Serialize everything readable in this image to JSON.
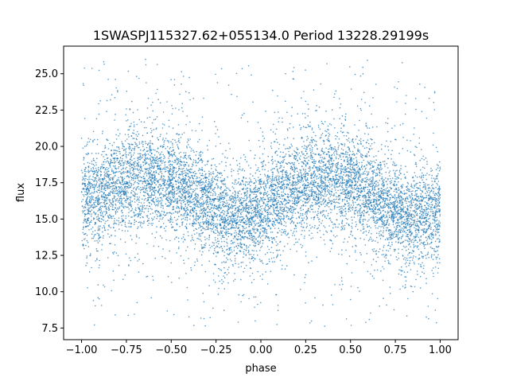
{
  "chart_data": {
    "type": "scatter",
    "title": "1SWASPJ115327.62+055134.0 Period 13228.29199s",
    "xlabel": "phase",
    "ylabel": "flux",
    "xlim": [
      -1.1,
      1.1
    ],
    "ylim": [
      6.7,
      26.9
    ],
    "x_ticks": [
      -1.0,
      -0.75,
      -0.5,
      -0.25,
      0.0,
      0.25,
      0.5,
      0.75,
      1.0
    ],
    "x_tick_labels": [
      "−1.00",
      "−0.75",
      "−0.50",
      "−0.25",
      "0.00",
      "0.25",
      "0.50",
      "0.75",
      "1.00"
    ],
    "y_ticks": [
      7.5,
      10.0,
      12.5,
      15.0,
      17.5,
      20.0,
      22.5,
      25.0
    ],
    "y_tick_labels": [
      "7.5",
      "10.0",
      "12.5",
      "15.0",
      "17.5",
      "20.0",
      "22.5",
      "25.0"
    ],
    "grid": false,
    "legend": "none",
    "marker_color": "#1f77b4",
    "series": [
      {
        "x_range": [
          -1.0,
          1.0
        ],
        "trend": {
          "phase": [
            -1.0,
            -0.9,
            -0.8,
            -0.7,
            -0.6,
            -0.5,
            -0.4,
            -0.3,
            -0.2,
            -0.1,
            0.0,
            0.1,
            0.2,
            0.3,
            0.4,
            0.5,
            0.6,
            0.7,
            0.8,
            0.9,
            1.0
          ],
          "flux": [
            16.1,
            16.8,
            17.4,
            17.8,
            17.9,
            17.6,
            16.9,
            16.0,
            15.2,
            15.1,
            15.6,
            16.4,
            17.2,
            17.7,
            17.9,
            17.5,
            16.7,
            15.9,
            15.3,
            15.2,
            15.6
          ]
        },
        "core_spread": 1.6,
        "outlier_range": [
          7.6,
          26.0
        ]
      }
    ]
  }
}
